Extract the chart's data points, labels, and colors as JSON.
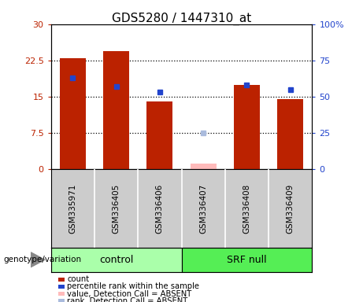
{
  "title": "GDS5280 / 1447310_at",
  "samples": [
    "GSM335971",
    "GSM336405",
    "GSM336406",
    "GSM336407",
    "GSM336408",
    "GSM336409"
  ],
  "bar_values": [
    23.0,
    24.5,
    14.0,
    1.2,
    17.5,
    14.5
  ],
  "bar_absent": [
    false,
    false,
    false,
    true,
    false,
    false
  ],
  "rank_values_pct": [
    63,
    57,
    53,
    25,
    58,
    55
  ],
  "rank_absent": [
    false,
    false,
    false,
    true,
    false,
    false
  ],
  "left_ylim": [
    0,
    30
  ],
  "right_ylim": [
    0,
    100
  ],
  "left_yticks": [
    0,
    7.5,
    15,
    22.5,
    30
  ],
  "right_yticks": [
    0,
    25,
    50,
    75,
    100
  ],
  "left_ytick_labels": [
    "0",
    "7.5",
    "15",
    "22.5",
    "30"
  ],
  "right_ytick_labels": [
    "0",
    "25",
    "50",
    "75",
    "100%"
  ],
  "bar_color_present": "#bb2200",
  "bar_color_absent": "#ffbbbb",
  "rank_color_present": "#2244cc",
  "rank_color_absent": "#aabbdd",
  "control_color": "#aaffaa",
  "srf_color": "#55ee55",
  "sample_box_color": "#cccccc",
  "plot_bg": "#ffffff",
  "legend_items": [
    {
      "label": "count",
      "color": "#bb2200"
    },
    {
      "label": "percentile rank within the sample",
      "color": "#2244cc"
    },
    {
      "label": "value, Detection Call = ABSENT",
      "color": "#ffbbbb"
    },
    {
      "label": "rank, Detection Call = ABSENT",
      "color": "#aabbdd"
    }
  ],
  "genotype_label": "genotype/variation"
}
